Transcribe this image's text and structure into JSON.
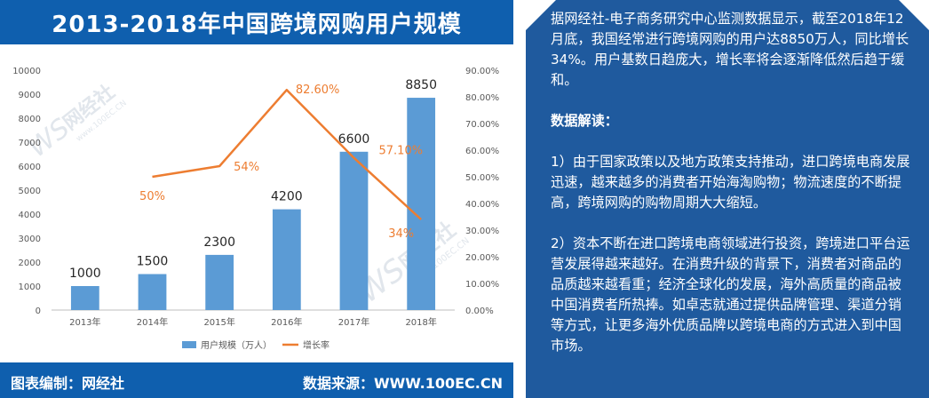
{
  "header": {
    "title": "2013-2018年中国跨境网购用户规模"
  },
  "footer": {
    "left": "图表编制：网经社",
    "right": "数据来源：WWW.100EC.CN"
  },
  "watermark": {
    "brand": "网经社",
    "sub": "www.100EC.CN",
    "ws": "WS"
  },
  "article": {
    "intro": "据网经社-电子商务研究中心监测数据显示，截至2018年12月底，我国经常进行跨境网购的用户达8850万人，同比增长34%。用户基数日趋庞大，增长率将会逐渐降低然后趋于缓和。",
    "heading": "数据解读：",
    "point1": "1）由于国家政策以及地方政策支持推动，进口跨境电商发展迅速，越来越多的消费者开始海淘购物；物流速度的不断提高，跨境网购的购物周期大大缩短。",
    "point2": "2）资本不断在进口跨境电商领域进行投资，跨境进口平台运营发展得越来越好。在消费升级的背景下，消费者对商品的品质越来越看重；经济全球化的发展，海外高质量的商品被中国消费者所热捧。如卓志就通过提供品牌管理、渠道分销等方式，让更多海外优质品牌以跨境电商的方式进入到中国市场。"
  },
  "colors": {
    "bar": "#5b9bd5",
    "line": "#ed7d31",
    "brand": "#0f5fae",
    "panel": "#1f5a9e"
  },
  "chart_data": {
    "type": "bar",
    "title": "2013-2018年中国跨境网购用户规模",
    "categories": [
      "2013年",
      "2014年",
      "2015年",
      "2016年",
      "2017年",
      "2018年"
    ],
    "series": [
      {
        "name": "用户规模（万人）",
        "type": "bar",
        "axis": "left",
        "values": [
          1000,
          1500,
          2300,
          4200,
          6600,
          8850
        ],
        "labels": [
          "1000",
          "1500",
          "2300",
          "4200",
          "6600",
          "8850"
        ]
      },
      {
        "name": "增长率",
        "type": "line",
        "axis": "right",
        "values": [
          null,
          50,
          54,
          82.6,
          57.1,
          34
        ],
        "labels": [
          "",
          "50%",
          "54%",
          "82.60%",
          "57.10%",
          "34%"
        ]
      }
    ],
    "left_axis": {
      "ylim": [
        0,
        10000
      ],
      "ticks": [
        "0",
        "1000",
        "2000",
        "3000",
        "4000",
        "5000",
        "6000",
        "7000",
        "8000",
        "9000",
        "10000"
      ]
    },
    "right_axis": {
      "ylim": [
        0,
        90
      ],
      "ticks": [
        "0.00%",
        "10.00%",
        "20.00%",
        "30.00%",
        "40.00%",
        "50.00%",
        "60.00%",
        "70.00%",
        "80.00%",
        "90.00%"
      ]
    },
    "grid": false,
    "legend_position": "bottom"
  }
}
